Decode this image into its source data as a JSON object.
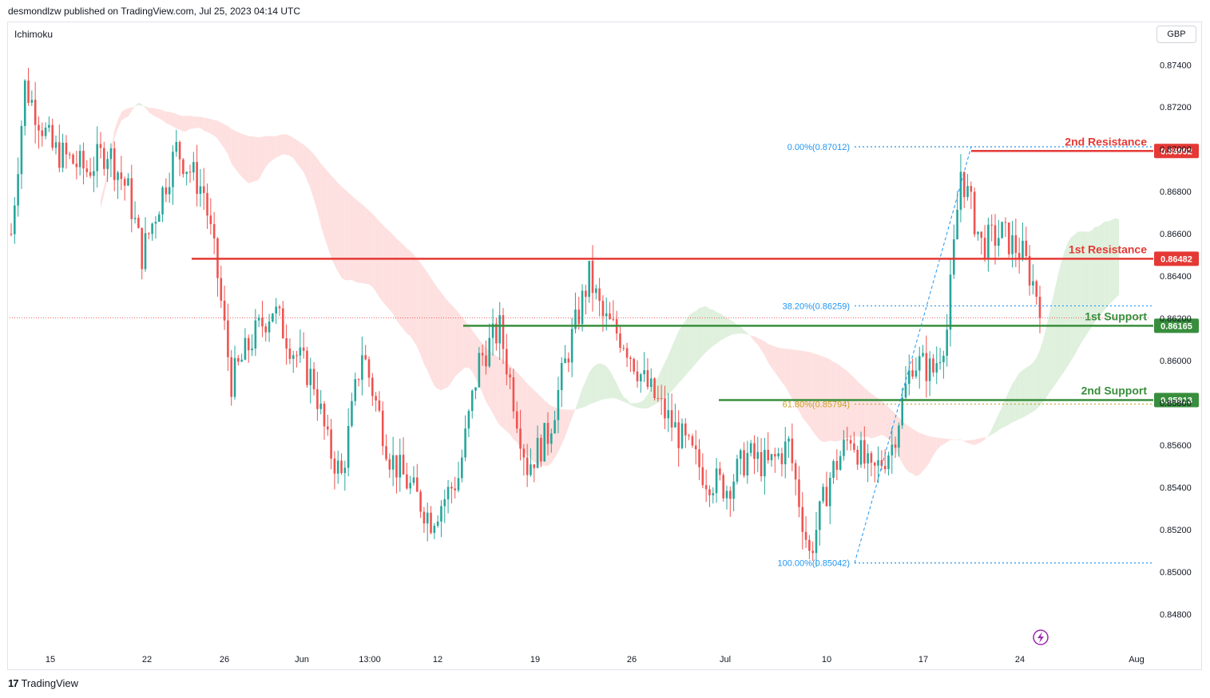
{
  "header": {
    "published_text": "desmondlzw published on TradingView.com, Jul 25, 2023 04:14 UTC"
  },
  "indicator": {
    "label": "Ichimoku"
  },
  "currency": {
    "label": "GBP"
  },
  "footer": {
    "logo_mark": "17",
    "logo_text": "TradingView"
  },
  "colors": {
    "up": "#26a69a",
    "down": "#ef5350",
    "resistance": "#e53935",
    "support": "#388e3c",
    "fib": "#2196f3",
    "fib_golden": "#c9a227",
    "cloud_bear": "#fde0df",
    "cloud_bull": "#dff0dd"
  },
  "chart_data": {
    "type": "candlestick",
    "y_axis": {
      "ticks": [
        0.874,
        0.872,
        0.87,
        0.868,
        0.866,
        0.864,
        0.862,
        0.86,
        0.858,
        0.856,
        0.854,
        0.852,
        0.85,
        0.848
      ],
      "tick_labels": [
        "0.87400",
        "0.87200",
        "0.87000",
        "0.86800",
        "0.86600",
        "0.86400",
        "0.86200",
        "0.86000",
        "0.85800",
        "0.85600",
        "0.85400",
        "0.85200",
        "0.85000",
        "0.84800"
      ],
      "ylim": [
        0.8472,
        0.8762
      ]
    },
    "x_axis": {
      "tick_labels": [
        "15",
        "22",
        "26",
        "Jun",
        "13:00",
        "12",
        "19",
        "26",
        "Jul",
        "10",
        "17",
        "24",
        "Aug"
      ]
    },
    "levels": [
      {
        "name": "2nd Resistance",
        "value": 0.86992,
        "tag": "0.86992",
        "kind": "resistance"
      },
      {
        "name": "1st Resistance",
        "value": 0.86482,
        "tag": "0.86482",
        "kind": "resistance"
      },
      {
        "name": "1st Support",
        "value": 0.86165,
        "tag": "0.86165",
        "kind": "support"
      },
      {
        "name": "2nd Support",
        "value": 0.85813,
        "tag": "0.85813",
        "kind": "support"
      }
    ],
    "fibonacci": [
      {
        "label": "0.00%(0.87012)",
        "value": 0.87012
      },
      {
        "label": "38.20%(0.86259)",
        "value": 0.86259
      },
      {
        "label": "61.80%(0.85794)",
        "value": 0.85794
      },
      {
        "label": "100.00%(0.85042)",
        "value": 0.85042
      }
    ],
    "anchors": [
      [
        0,
        0.866
      ],
      [
        4,
        0.873
      ],
      [
        12,
        0.87
      ],
      [
        22,
        0.869
      ],
      [
        28,
        0.87
      ],
      [
        34,
        0.868
      ],
      [
        38,
        0.865
      ],
      [
        48,
        0.87
      ],
      [
        56,
        0.868
      ],
      [
        60,
        0.864
      ],
      [
        64,
        0.859
      ],
      [
        70,
        0.861
      ],
      [
        76,
        0.8625
      ],
      [
        82,
        0.8605
      ],
      [
        88,
        0.859
      ],
      [
        92,
        0.856
      ],
      [
        96,
        0.8545
      ],
      [
        102,
        0.8605
      ],
      [
        110,
        0.8555
      ],
      [
        116,
        0.854
      ],
      [
        122,
        0.8525
      ],
      [
        130,
        0.8545
      ],
      [
        136,
        0.86
      ],
      [
        142,
        0.8615
      ],
      [
        150,
        0.855
      ],
      [
        156,
        0.8565
      ],
      [
        162,
        0.8605
      ],
      [
        168,
        0.864
      ],
      [
        172,
        0.862
      ],
      [
        178,
        0.861
      ],
      [
        184,
        0.859
      ],
      [
        190,
        0.8575
      ],
      [
        196,
        0.856
      ],
      [
        202,
        0.8545
      ],
      [
        208,
        0.854
      ],
      [
        214,
        0.8555
      ],
      [
        220,
        0.855
      ],
      [
        226,
        0.856
      ],
      [
        232,
        0.8508
      ],
      [
        238,
        0.8545
      ],
      [
        244,
        0.8565
      ],
      [
        250,
        0.8545
      ],
      [
        256,
        0.856
      ],
      [
        262,
        0.86
      ],
      [
        268,
        0.8595
      ],
      [
        272,
        0.8615
      ],
      [
        276,
        0.869
      ],
      [
        282,
        0.8655
      ],
      [
        288,
        0.866
      ],
      [
        294,
        0.865
      ],
      [
        299,
        0.8628
      ]
    ]
  },
  "watermark": {
    "icon": "bolt-icon"
  }
}
